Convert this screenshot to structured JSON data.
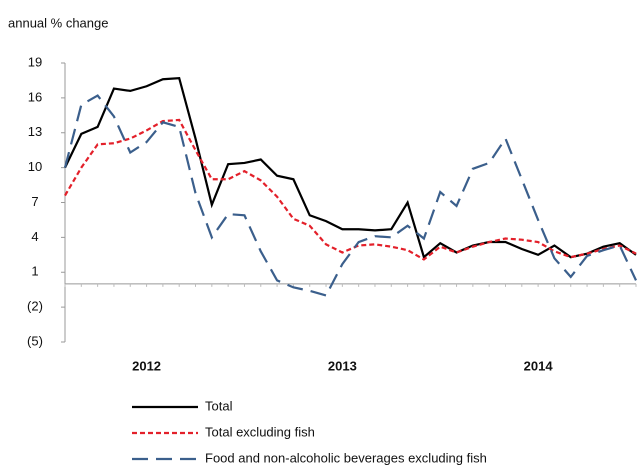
{
  "chart_data": {
    "type": "line",
    "y_label": "annual % change",
    "categories": [
      null,
      null,
      null,
      null,
      null,
      "2012",
      null,
      null,
      null,
      null,
      null,
      null,
      null,
      null,
      null,
      null,
      null,
      "2013",
      null,
      null,
      null,
      null,
      null,
      null,
      null,
      null,
      null,
      null,
      null,
      "2014",
      null,
      null,
      null,
      null,
      null,
      null
    ],
    "series": [
      {
        "name": "Total",
        "color": "#000000",
        "dash": "solid",
        "values": [
          10.0,
          12.9,
          13.5,
          16.8,
          16.6,
          17.0,
          17.6,
          17.7,
          12.5,
          6.8,
          10.3,
          10.4,
          10.7,
          9.3,
          9.0,
          5.9,
          5.4,
          4.7,
          4.7,
          4.6,
          4.7,
          7.0,
          2.3,
          3.5,
          2.7,
          3.3,
          3.6,
          3.6,
          3.0,
          2.5,
          3.3,
          2.3,
          2.6,
          3.2,
          3.5,
          2.5
        ]
      },
      {
        "name": "Total excluding fish",
        "color": "#e3202a",
        "dash": "dotted",
        "values": [
          7.6,
          10.0,
          12.0,
          12.1,
          12.5,
          13.2,
          14.0,
          14.1,
          11.5,
          9.0,
          9.0,
          9.7,
          8.9,
          7.5,
          5.6,
          5.0,
          3.4,
          2.7,
          3.3,
          3.4,
          3.2,
          2.9,
          2.1,
          3.2,
          2.7,
          3.2,
          3.6,
          3.9,
          3.8,
          3.6,
          2.8,
          2.3,
          2.6,
          3.0,
          3.3,
          2.6
        ]
      },
      {
        "name": "Food and non-alcoholic beverages excluding fish",
        "color": "#3b5f8c",
        "dash": "dashed",
        "values": [
          10.0,
          15.4,
          16.2,
          14.4,
          11.3,
          12.2,
          13.9,
          13.5,
          7.8,
          4.0,
          6.0,
          5.9,
          2.8,
          0.3,
          -0.3,
          -0.6,
          -1.0,
          1.7,
          3.6,
          4.1,
          4.0,
          5.0,
          3.9,
          7.9,
          6.7,
          9.9,
          10.4,
          12.5,
          9.0,
          5.5,
          2.2,
          0.6,
          2.4,
          2.9,
          3.3,
          0.3
        ]
      }
    ],
    "ylim": [
      -5,
      19
    ],
    "yticks": [
      19,
      16,
      13,
      10,
      7,
      4,
      1,
      {
        "value": -2,
        "label": "(2)"
      },
      {
        "value": -5,
        "label": "(5)"
      }
    ],
    "grid": false
  }
}
